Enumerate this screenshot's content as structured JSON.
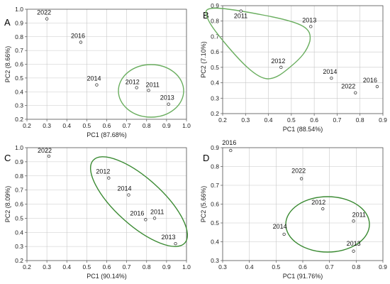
{
  "colors": {
    "axis": "#555555",
    "grid": "#c8c8c8",
    "point_stroke": "#3c3c3c",
    "ellipse": "#6aae5f",
    "ellipse_dark": "#3a8a32",
    "background": "#ffffff"
  },
  "chart_data": [
    {
      "type": "scatter",
      "panel": "A",
      "title": "",
      "xlabel": "PC1 (87.68%)",
      "ylabel": "PC2 (8.66%)",
      "xlim": [
        0.2,
        1.0
      ],
      "ylim": [
        0.2,
        1.0
      ],
      "xticks": [
        "0.2",
        "0.3",
        "0.4",
        "0.5",
        "0.6",
        "0.7",
        "0.8",
        "0.9",
        "1.0"
      ],
      "yticks": [
        "0.2",
        "0.3",
        "0.4",
        "0.5",
        "0.6",
        "0.7",
        "0.8",
        "0.9",
        "1.0"
      ],
      "grid": true,
      "points": [
        {
          "label": "2022",
          "x": 0.3,
          "y": 0.93
        },
        {
          "label": "2016",
          "x": 0.47,
          "y": 0.76
        },
        {
          "label": "2014",
          "x": 0.55,
          "y": 0.45
        },
        {
          "label": "2012",
          "x": 0.75,
          "y": 0.43
        },
        {
          "label": "2011",
          "x": 0.81,
          "y": 0.41
        },
        {
          "label": "2013",
          "x": 0.91,
          "y": 0.31
        }
      ],
      "grouped": [
        "2012",
        "2011",
        "2013"
      ]
    },
    {
      "type": "scatter",
      "panel": "B",
      "title": "",
      "xlabel": "PC1 (88.54%)",
      "ylabel": "PC2 (7.10%)",
      "xlim": [
        0.2,
        0.9
      ],
      "ylim": [
        0.2,
        0.9
      ],
      "xticks": [
        "0.2",
        "0.3",
        "0.4",
        "0.5",
        "0.6",
        "0.7",
        "0.8",
        "0.9"
      ],
      "yticks": [
        "0.2",
        "0.3",
        "0.4",
        "0.5",
        "0.6",
        "0.7",
        "0.8",
        "0.9"
      ],
      "grid": true,
      "points": [
        {
          "label": "2011",
          "x": 0.28,
          "y": 0.865
        },
        {
          "label": "2013",
          "x": 0.585,
          "y": 0.765
        },
        {
          "label": "2012",
          "x": 0.455,
          "y": 0.5
        },
        {
          "label": "2014",
          "x": 0.675,
          "y": 0.43
        },
        {
          "label": "2022",
          "x": 0.78,
          "y": 0.335
        },
        {
          "label": "2016",
          "x": 0.875,
          "y": 0.375
        }
      ],
      "grouped": [
        "2011",
        "2013",
        "2012"
      ]
    },
    {
      "type": "scatter",
      "panel": "C",
      "title": "",
      "xlabel": "PC1 (90.14%)",
      "ylabel": "PC2 (8.09%)",
      "xlim": [
        0.2,
        1.0
      ],
      "ylim": [
        0.2,
        1.0
      ],
      "xticks": [
        "0.2",
        "0.3",
        "0.4",
        "0.5",
        "0.6",
        "0.7",
        "0.8",
        "0.9",
        "1.0"
      ],
      "yticks": [
        "0.2",
        "0.3",
        "0.4",
        "0.5",
        "0.6",
        "0.7",
        "0.8",
        "0.9",
        "1.0"
      ],
      "grid": true,
      "points": [
        {
          "label": "2022",
          "x": 0.31,
          "y": 0.94
        },
        {
          "label": "2012",
          "x": 0.61,
          "y": 0.785
        },
        {
          "label": "2014",
          "x": 0.71,
          "y": 0.665
        },
        {
          "label": "2016",
          "x": 0.795,
          "y": 0.49
        },
        {
          "label": "2011",
          "x": 0.84,
          "y": 0.5
        },
        {
          "label": "2013",
          "x": 0.945,
          "y": 0.32
        }
      ],
      "grouped": [
        "2012",
        "2014",
        "2016",
        "2011",
        "2013"
      ]
    },
    {
      "type": "scatter",
      "panel": "D",
      "title": "",
      "xlabel": "PC1 (91.76%)",
      "ylabel": "PC2 (5.66%)",
      "xlim": [
        0.3,
        0.9
      ],
      "ylim": [
        0.3,
        0.9
      ],
      "xticks": [
        "0.3",
        "0.4",
        "0.5",
        "0.6",
        "0.7",
        "0.8",
        "0.9"
      ],
      "yticks": [
        "0.3",
        "0.4",
        "0.5",
        "0.6",
        "0.7",
        "0.8",
        "0.9"
      ],
      "grid": true,
      "points": [
        {
          "label": "2016",
          "x": 0.33,
          "y": 0.885
        },
        {
          "label": "2022",
          "x": 0.595,
          "y": 0.735
        },
        {
          "label": "2012",
          "x": 0.675,
          "y": 0.575
        },
        {
          "label": "2011",
          "x": 0.79,
          "y": 0.51
        },
        {
          "label": "2014",
          "x": 0.53,
          "y": 0.44
        },
        {
          "label": "2013",
          "x": 0.79,
          "y": 0.35
        }
      ],
      "grouped": [
        "2012",
        "2011",
        "2013"
      ]
    }
  ]
}
